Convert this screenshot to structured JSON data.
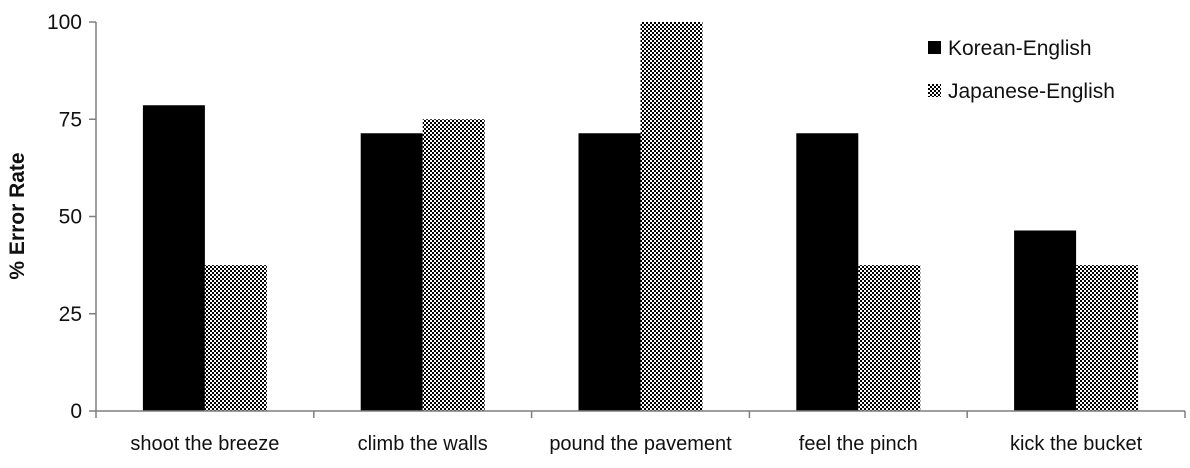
{
  "chart_data": {
    "type": "bar",
    "categories": [
      "shoot the breeze",
      "climb the walls",
      "pound the pavement",
      "feel the pinch",
      "kick the bucket"
    ],
    "series": [
      {
        "name": "Korean-English",
        "values": [
          78.6,
          71.4,
          71.4,
          71.4,
          46.4
        ],
        "fill": "solid",
        "color": "#000000"
      },
      {
        "name": "Japanese-English",
        "values": [
          37.5,
          75,
          100,
          37.5,
          37.5
        ],
        "fill": "checkered",
        "color": "#000000"
      }
    ],
    "title": "",
    "xlabel": "",
    "ylabel": "% Error Rate",
    "ylim": [
      0,
      100
    ],
    "yticks": [
      0,
      25,
      50,
      75,
      100
    ],
    "grid": false,
    "legend_position": "top-right"
  }
}
